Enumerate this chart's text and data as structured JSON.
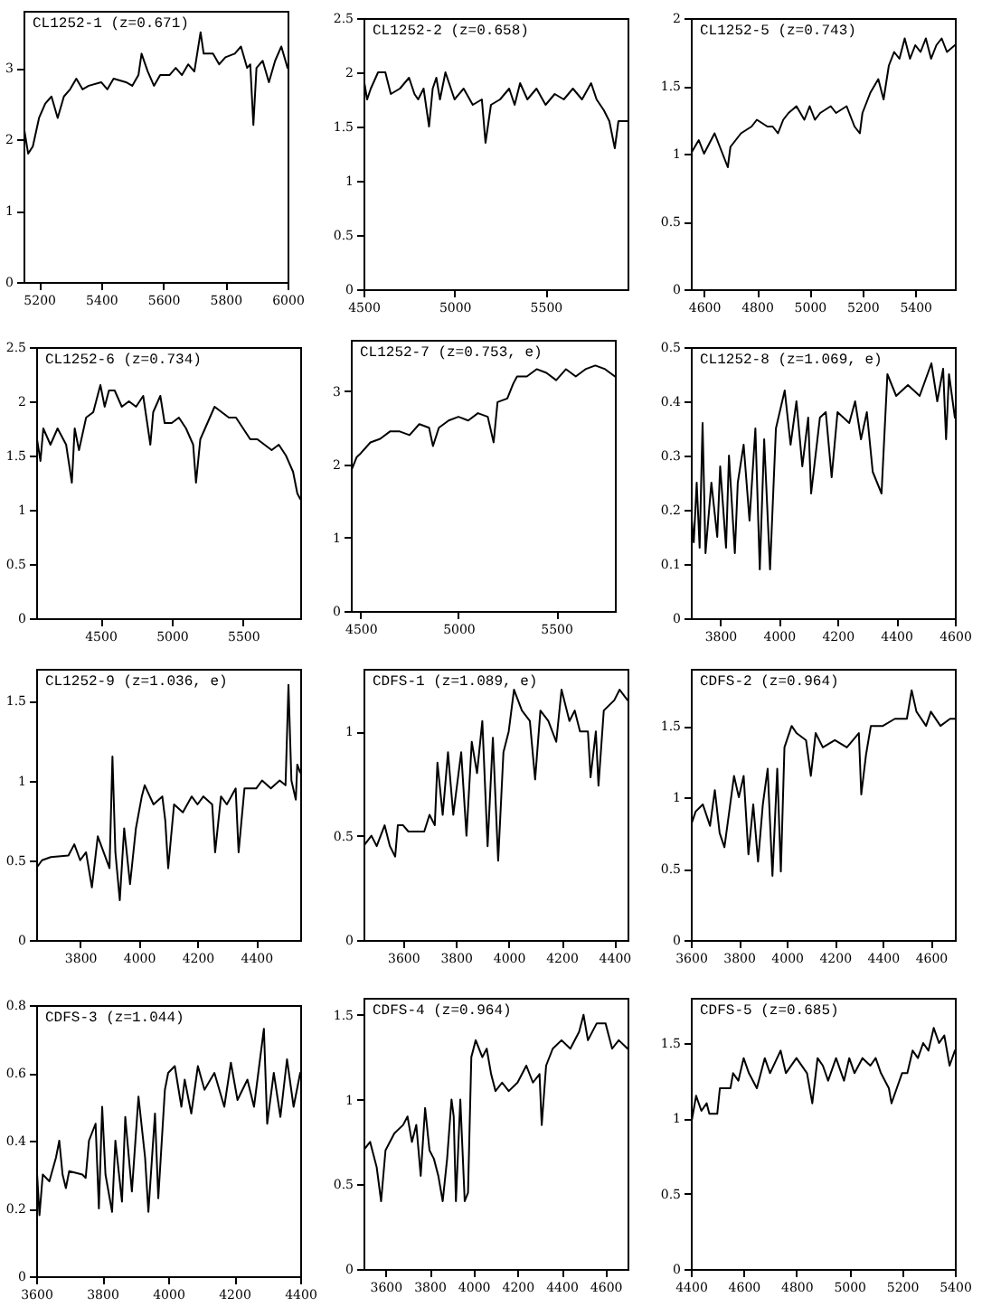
{
  "chart_data": [
    {
      "type": "line",
      "title": "CL1252-1 (z=0.671)",
      "color": "#000000",
      "xlim": [
        5150,
        6000
      ],
      "xticks": [
        5200,
        5400,
        5600,
        5800,
        6000
      ],
      "ylim": [
        0,
        3.8
      ],
      "yticks": [
        0,
        1,
        2,
        3
      ],
      "x": [
        5150,
        5165,
        5180,
        5200,
        5220,
        5240,
        5260,
        5280,
        5300,
        5320,
        5340,
        5360,
        5400,
        5420,
        5440,
        5480,
        5500,
        5520,
        5530,
        5550,
        5570,
        5590,
        5620,
        5640,
        5660,
        5680,
        5700,
        5720,
        5730,
        5760,
        5780,
        5800,
        5830,
        5850,
        5870,
        5880,
        5890,
        5900,
        5920,
        5940,
        5960,
        5980,
        6000
      ],
      "values": [
        2.2,
        1.8,
        1.9,
        2.3,
        2.5,
        2.6,
        2.3,
        2.6,
        2.7,
        2.85,
        2.7,
        2.75,
        2.8,
        2.7,
        2.85,
        2.8,
        2.75,
        2.9,
        3.2,
        2.95,
        2.75,
        2.9,
        2.9,
        3.0,
        2.9,
        3.05,
        2.95,
        3.5,
        3.2,
        3.2,
        3.05,
        3.15,
        3.2,
        3.3,
        3.0,
        3.05,
        2.2,
        3.0,
        3.1,
        2.8,
        3.1,
        3.3,
        3.0
      ]
    },
    {
      "type": "line",
      "title": "CL1252-2 (z=0.658)",
      "color": "#000000",
      "xlim": [
        4500,
        5950
      ],
      "xticks": [
        4500,
        5000,
        5500
      ],
      "ylim": [
        0,
        2.5
      ],
      "yticks": [
        0,
        0.5,
        1,
        1.5,
        2,
        2.5
      ],
      "x": [
        4500,
        4520,
        4540,
        4580,
        4620,
        4650,
        4700,
        4750,
        4780,
        4800,
        4830,
        4860,
        4880,
        4900,
        4920,
        4950,
        4980,
        5000,
        5050,
        5100,
        5150,
        5170,
        5200,
        5250,
        5300,
        5330,
        5360,
        5400,
        5450,
        5500,
        5550,
        5600,
        5650,
        5700,
        5750,
        5780,
        5820,
        5850,
        5880,
        5900,
        5950
      ],
      "values": [
        1.95,
        1.75,
        1.85,
        2.0,
        2.0,
        1.8,
        1.85,
        1.95,
        1.8,
        1.75,
        1.85,
        1.5,
        1.85,
        1.95,
        1.75,
        2.0,
        1.85,
        1.75,
        1.85,
        1.7,
        1.75,
        1.35,
        1.7,
        1.75,
        1.85,
        1.7,
        1.9,
        1.75,
        1.85,
        1.7,
        1.8,
        1.75,
        1.85,
        1.75,
        1.9,
        1.75,
        1.65,
        1.55,
        1.3,
        1.55,
        1.55
      ]
    },
    {
      "type": "line",
      "title": "CL1252-5 (z=0.743)",
      "color": "#000000",
      "xlim": [
        4550,
        5550
      ],
      "xticks": [
        4600,
        4800,
        5000,
        5200,
        5400
      ],
      "ylim": [
        0,
        2
      ],
      "yticks": [
        0,
        0.5,
        1,
        1.5,
        2
      ],
      "x": [
        4550,
        4580,
        4600,
        4640,
        4660,
        4690,
        4700,
        4740,
        4780,
        4800,
        4840,
        4860,
        4880,
        4900,
        4920,
        4950,
        4980,
        5000,
        5020,
        5040,
        5080,
        5100,
        5140,
        5170,
        5190,
        5200,
        5230,
        5260,
        5280,
        5300,
        5320,
        5340,
        5360,
        5380,
        5400,
        5420,
        5440,
        5460,
        5480,
        5500,
        5520,
        5550
      ],
      "values": [
        1.0,
        1.1,
        1.0,
        1.15,
        1.05,
        0.9,
        1.05,
        1.15,
        1.2,
        1.25,
        1.2,
        1.2,
        1.15,
        1.25,
        1.3,
        1.35,
        1.25,
        1.35,
        1.25,
        1.3,
        1.35,
        1.3,
        1.35,
        1.2,
        1.15,
        1.3,
        1.45,
        1.55,
        1.4,
        1.65,
        1.75,
        1.7,
        1.85,
        1.7,
        1.8,
        1.75,
        1.85,
        1.7,
        1.8,
        1.85,
        1.75,
        1.8
      ]
    },
    {
      "type": "line",
      "title": "CL1252-6 (z=0.734)",
      "color": "#000000",
      "xlim": [
        4050,
        5900
      ],
      "xticks": [
        4500,
        5000,
        5500
      ],
      "ylim": [
        0,
        2.5
      ],
      "yticks": [
        0,
        0.5,
        1,
        1.5,
        2,
        2.5
      ],
      "x": [
        4050,
        4080,
        4100,
        4150,
        4200,
        4260,
        4300,
        4320,
        4350,
        4400,
        4450,
        4500,
        4530,
        4560,
        4600,
        4650,
        4700,
        4750,
        4800,
        4850,
        4870,
        4920,
        4950,
        5000,
        5050,
        5100,
        5150,
        5170,
        5200,
        5250,
        5300,
        5350,
        5400,
        5450,
        5500,
        5550,
        5600,
        5650,
        5700,
        5750,
        5800,
        5850,
        5880,
        5900
      ],
      "values": [
        1.7,
        1.45,
        1.75,
        1.6,
        1.75,
        1.6,
        1.25,
        1.75,
        1.55,
        1.85,
        1.9,
        2.15,
        1.95,
        2.1,
        2.1,
        1.95,
        2.0,
        1.95,
        2.05,
        1.6,
        1.9,
        2.05,
        1.8,
        1.8,
        1.85,
        1.75,
        1.6,
        1.25,
        1.65,
        1.8,
        1.95,
        1.9,
        1.85,
        1.85,
        1.75,
        1.65,
        1.65,
        1.6,
        1.55,
        1.6,
        1.5,
        1.35,
        1.15,
        1.1
      ]
    },
    {
      "type": "line",
      "title": "CL1252-7 (z=0.753, e)",
      "color": "#000000",
      "xlim": [
        4450,
        5800
      ],
      "xticks": [
        4500,
        5000,
        5500
      ],
      "ylim": [
        0,
        3.7
      ],
      "yticks": [
        0,
        1,
        2,
        3
      ],
      "x": [
        4450,
        4480,
        4500,
        4550,
        4600,
        4650,
        4700,
        4750,
        4800,
        4850,
        4870,
        4900,
        4950,
        5000,
        5050,
        5100,
        5150,
        5180,
        5200,
        5250,
        5280,
        5300,
        5350,
        5400,
        5450,
        5500,
        5550,
        5600,
        5650,
        5700,
        5750,
        5800
      ],
      "values": [
        1.9,
        2.1,
        2.15,
        2.3,
        2.35,
        2.45,
        2.45,
        2.4,
        2.55,
        2.5,
        2.25,
        2.5,
        2.6,
        2.65,
        2.6,
        2.7,
        2.65,
        2.3,
        2.85,
        2.9,
        3.1,
        3.2,
        3.2,
        3.3,
        3.25,
        3.15,
        3.3,
        3.2,
        3.3,
        3.35,
        3.3,
        3.2
      ]
    },
    {
      "type": "line",
      "title": "CL1252-8 (z=1.069, e)",
      "color": "#000000",
      "xlim": [
        3700,
        4600
      ],
      "xticks": [
        3800,
        4000,
        4200,
        4400,
        4600
      ],
      "ylim": [
        0,
        0.5
      ],
      "yticks": [
        0,
        0.1,
        0.2,
        0.3,
        0.4,
        0.5
      ],
      "x": [
        3700,
        3710,
        3720,
        3730,
        3740,
        3750,
        3770,
        3790,
        3800,
        3820,
        3830,
        3850,
        3860,
        3880,
        3900,
        3920,
        3935,
        3950,
        3970,
        3990,
        4020,
        4040,
        4060,
        4080,
        4100,
        4110,
        4140,
        4160,
        4180,
        4200,
        4240,
        4260,
        4280,
        4300,
        4320,
        4350,
        4370,
        4400,
        4440,
        4480,
        4520,
        4540,
        4560,
        4570,
        4580,
        4600
      ],
      "values": [
        0.2,
        0.14,
        0.25,
        0.13,
        0.36,
        0.12,
        0.25,
        0.15,
        0.28,
        0.13,
        0.3,
        0.12,
        0.25,
        0.32,
        0.18,
        0.35,
        0.09,
        0.33,
        0.09,
        0.35,
        0.42,
        0.32,
        0.4,
        0.28,
        0.37,
        0.23,
        0.37,
        0.38,
        0.26,
        0.38,
        0.36,
        0.4,
        0.33,
        0.38,
        0.27,
        0.23,
        0.45,
        0.41,
        0.43,
        0.41,
        0.47,
        0.4,
        0.46,
        0.33,
        0.45,
        0.37
      ]
    },
    {
      "type": "line",
      "title": "CL1252-9 (z=1.036, e)",
      "color": "#000000",
      "xlim": [
        3650,
        4550
      ],
      "xticks": [
        3800,
        4000,
        4200,
        4400
      ],
      "ylim": [
        0,
        1.7
      ],
      "yticks": [
        0,
        0.5,
        1,
        1.5
      ],
      "x": [
        3650,
        3670,
        3700,
        3760,
        3780,
        3800,
        3820,
        3840,
        3860,
        3880,
        3900,
        3910,
        3920,
        3935,
        3950,
        3970,
        3990,
        4010,
        4020,
        4050,
        4080,
        4090,
        4100,
        4120,
        4150,
        4180,
        4200,
        4220,
        4250,
        4260,
        4280,
        4300,
        4330,
        4340,
        4360,
        4400,
        4420,
        4450,
        4480,
        4500,
        4510,
        4520,
        4535,
        4540,
        4550
      ],
      "values": [
        0.45,
        0.5,
        0.52,
        0.53,
        0.6,
        0.5,
        0.55,
        0.33,
        0.65,
        0.55,
        0.45,
        1.15,
        0.55,
        0.25,
        0.7,
        0.35,
        0.7,
        0.9,
        0.97,
        0.85,
        0.9,
        0.75,
        0.45,
        0.85,
        0.8,
        0.9,
        0.85,
        0.9,
        0.85,
        0.55,
        0.9,
        0.85,
        0.95,
        0.55,
        0.95,
        0.95,
        1.0,
        0.95,
        1.0,
        0.97,
        1.6,
        1.0,
        0.88,
        1.1,
        1.05
      ]
    },
    {
      "type": "line",
      "title": "CDFS-1 (z=1.089, e)",
      "color": "#000000",
      "xlim": [
        3450,
        4450
      ],
      "xticks": [
        3600,
        3800,
        4000,
        4200,
        4400
      ],
      "ylim": [
        0,
        1.3
      ],
      "yticks": [
        0,
        0.5,
        1
      ],
      "x": [
        3450,
        3480,
        3500,
        3530,
        3550,
        3570,
        3580,
        3600,
        3620,
        3680,
        3700,
        3720,
        3730,
        3750,
        3770,
        3790,
        3820,
        3840,
        3860,
        3880,
        3900,
        3920,
        3940,
        3960,
        3980,
        4000,
        4020,
        4050,
        4080,
        4100,
        4120,
        4150,
        4180,
        4200,
        4230,
        4250,
        4270,
        4300,
        4310,
        4330,
        4340,
        4360,
        4400,
        4420,
        4450
      ],
      "values": [
        0.45,
        0.5,
        0.45,
        0.55,
        0.45,
        0.4,
        0.55,
        0.55,
        0.52,
        0.52,
        0.6,
        0.55,
        0.85,
        0.6,
        0.9,
        0.6,
        0.9,
        0.5,
        0.95,
        0.8,
        1.05,
        0.45,
        0.97,
        0.38,
        0.9,
        1.0,
        1.2,
        1.1,
        1.05,
        0.77,
        1.1,
        1.05,
        0.95,
        1.2,
        1.05,
        1.1,
        1.0,
        1.0,
        0.78,
        1.0,
        0.74,
        1.1,
        1.15,
        1.2,
        1.15
      ]
    },
    {
      "type": "line",
      "title": "CDFS-2 (z=0.964)",
      "color": "#000000",
      "xlim": [
        3600,
        4700
      ],
      "xticks": [
        3600,
        3800,
        4000,
        4200,
        4400,
        4600
      ],
      "ylim": [
        0,
        1.9
      ],
      "yticks": [
        0,
        0.5,
        1,
        1.5
      ],
      "x": [
        3600,
        3620,
        3650,
        3680,
        3700,
        3720,
        3740,
        3760,
        3780,
        3800,
        3820,
        3840,
        3860,
        3880,
        3900,
        3920,
        3940,
        3960,
        3975,
        3990,
        4020,
        4040,
        4080,
        4100,
        4120,
        4150,
        4200,
        4250,
        4300,
        4310,
        4330,
        4350,
        4400,
        4450,
        4500,
        4520,
        4540,
        4580,
        4600,
        4640,
        4680,
        4700
      ],
      "values": [
        0.8,
        0.9,
        0.95,
        0.8,
        1.05,
        0.75,
        0.65,
        0.9,
        1.15,
        1.0,
        1.15,
        0.6,
        0.95,
        0.55,
        0.95,
        1.2,
        0.45,
        1.2,
        0.48,
        1.35,
        1.5,
        1.45,
        1.4,
        1.15,
        1.45,
        1.35,
        1.4,
        1.35,
        1.45,
        1.02,
        1.3,
        1.5,
        1.5,
        1.55,
        1.55,
        1.75,
        1.6,
        1.5,
        1.6,
        1.5,
        1.55,
        1.55
      ]
    },
    {
      "type": "line",
      "title": "CDFS-3 (z=1.044)",
      "color": "#000000",
      "xlim": [
        3600,
        4400
      ],
      "xticks": [
        3600,
        3800,
        4000,
        4200,
        4400
      ],
      "ylim": [
        0,
        0.8
      ],
      "yticks": [
        0,
        0.2,
        0.4,
        0.6,
        0.8
      ],
      "x": [
        3600,
        3610,
        3620,
        3640,
        3660,
        3670,
        3680,
        3690,
        3700,
        3740,
        3750,
        3760,
        3780,
        3790,
        3800,
        3810,
        3830,
        3840,
        3860,
        3870,
        3890,
        3910,
        3930,
        3940,
        3960,
        3970,
        3990,
        4000,
        4020,
        4040,
        4050,
        4070,
        4090,
        4110,
        4140,
        4170,
        4190,
        4210,
        4240,
        4260,
        4290,
        4300,
        4320,
        4340,
        4360,
        4380,
        4400
      ],
      "values": [
        0.35,
        0.18,
        0.3,
        0.28,
        0.35,
        0.4,
        0.3,
        0.26,
        0.31,
        0.3,
        0.29,
        0.4,
        0.45,
        0.2,
        0.5,
        0.3,
        0.19,
        0.4,
        0.22,
        0.47,
        0.25,
        0.53,
        0.35,
        0.19,
        0.48,
        0.23,
        0.55,
        0.6,
        0.62,
        0.5,
        0.58,
        0.48,
        0.62,
        0.55,
        0.6,
        0.5,
        0.63,
        0.52,
        0.58,
        0.5,
        0.73,
        0.45,
        0.6,
        0.47,
        0.64,
        0.5,
        0.6
      ]
    },
    {
      "type": "line",
      "title": "CDFS-4 (z=0.964)",
      "color": "#000000",
      "xlim": [
        3500,
        4700
      ],
      "xticks": [
        3600,
        3800,
        4000,
        4200,
        4400,
        4600
      ],
      "ylim": [
        0,
        1.6
      ],
      "yticks": [
        0,
        0.5,
        1,
        1.5
      ],
      "x": [
        3500,
        3530,
        3560,
        3580,
        3600,
        3640,
        3680,
        3700,
        3720,
        3740,
        3760,
        3780,
        3800,
        3820,
        3840,
        3860,
        3880,
        3900,
        3910,
        3920,
        3940,
        3960,
        3975,
        3990,
        4010,
        4040,
        4060,
        4080,
        4100,
        4130,
        4160,
        4200,
        4240,
        4270,
        4300,
        4310,
        4330,
        4360,
        4400,
        4440,
        4480,
        4500,
        4520,
        4560,
        4600,
        4630,
        4660,
        4700
      ],
      "values": [
        0.7,
        0.75,
        0.6,
        0.4,
        0.7,
        0.8,
        0.85,
        0.9,
        0.75,
        0.85,
        0.55,
        0.95,
        0.7,
        0.65,
        0.55,
        0.4,
        0.65,
        1.0,
        0.9,
        0.4,
        1.0,
        0.4,
        0.45,
        1.25,
        1.35,
        1.25,
        1.3,
        1.15,
        1.05,
        1.1,
        1.05,
        1.1,
        1.2,
        1.1,
        1.15,
        0.85,
        1.2,
        1.3,
        1.35,
        1.3,
        1.4,
        1.5,
        1.35,
        1.45,
        1.45,
        1.3,
        1.35,
        1.3
      ]
    },
    {
      "type": "line",
      "title": "CDFS-5 (z=0.685)",
      "color": "#000000",
      "xlim": [
        4400,
        5400
      ],
      "xticks": [
        4400,
        4600,
        4800,
        5000,
        5200,
        5400
      ],
      "ylim": [
        0,
        1.8
      ],
      "yticks": [
        0,
        0.5,
        1,
        1.5
      ],
      "x": [
        4400,
        4420,
        4440,
        4460,
        4470,
        4500,
        4510,
        4550,
        4560,
        4580,
        4600,
        4620,
        4650,
        4680,
        4700,
        4740,
        4760,
        4800,
        4840,
        4860,
        4880,
        4900,
        4920,
        4950,
        4980,
        5000,
        5020,
        5050,
        5080,
        5100,
        5120,
        5150,
        5160,
        5180,
        5200,
        5220,
        5240,
        5260,
        5280,
        5300,
        5320,
        5340,
        5360,
        5380,
        5400
      ],
      "values": [
        0.95,
        1.15,
        1.05,
        1.1,
        1.03,
        1.03,
        1.2,
        1.2,
        1.3,
        1.25,
        1.4,
        1.3,
        1.2,
        1.4,
        1.3,
        1.45,
        1.3,
        1.4,
        1.3,
        1.1,
        1.4,
        1.35,
        1.25,
        1.4,
        1.25,
        1.4,
        1.3,
        1.4,
        1.35,
        1.4,
        1.3,
        1.2,
        1.1,
        1.2,
        1.3,
        1.3,
        1.45,
        1.4,
        1.5,
        1.45,
        1.6,
        1.5,
        1.55,
        1.35,
        1.45
      ]
    }
  ]
}
